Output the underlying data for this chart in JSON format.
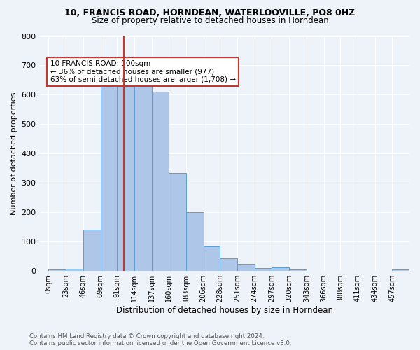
{
  "title1": "10, FRANCIS ROAD, HORNDEAN, WATERLOOVILLE, PO8 0HZ",
  "title2": "Size of property relative to detached houses in Horndean",
  "xlabel": "Distribution of detached houses by size in Horndean",
  "ylabel": "Number of detached properties",
  "footnote1": "Contains HM Land Registry data © Crown copyright and database right 2024.",
  "footnote2": "Contains public sector information licensed under the Open Government Licence v3.0.",
  "bar_color": "#aec6e8",
  "bar_edge_color": "#5a9fd4",
  "vline_x": 100,
  "vline_color": "#c0392b",
  "annotation_line1": "10 FRANCIS ROAD: 100sqm",
  "annotation_line2": "← 36% of detached houses are smaller (977)",
  "annotation_line3": "63% of semi-detached houses are larger (1,708) →",
  "annotation_box_color": "#c0392b",
  "bin_edges": [
    0,
    23,
    46,
    69,
    91,
    114,
    137,
    160,
    183,
    206,
    228,
    251,
    274,
    297,
    320,
    343,
    366,
    388,
    411,
    434,
    457
  ],
  "bin_counts": [
    5,
    7,
    142,
    637,
    633,
    630,
    610,
    335,
    200,
    85,
    43,
    25,
    11,
    12,
    5,
    0,
    0,
    0,
    0,
    0,
    5
  ],
  "xlim": [
    -12,
    480
  ],
  "ylim": [
    0,
    800
  ],
  "yticks": [
    0,
    100,
    200,
    300,
    400,
    500,
    600,
    700,
    800
  ],
  "xtick_labels": [
    "0sqm",
    "23sqm",
    "46sqm",
    "69sqm",
    "91sqm",
    "114sqm",
    "137sqm",
    "160sqm",
    "183sqm",
    "206sqm",
    "228sqm",
    "251sqm",
    "274sqm",
    "297sqm",
    "320sqm",
    "343sqm",
    "366sqm",
    "388sqm",
    "411sqm",
    "434sqm",
    "457sqm"
  ],
  "background_color": "#eef3fa",
  "plot_background": "#eef3fa",
  "grid_color": "#ffffff"
}
